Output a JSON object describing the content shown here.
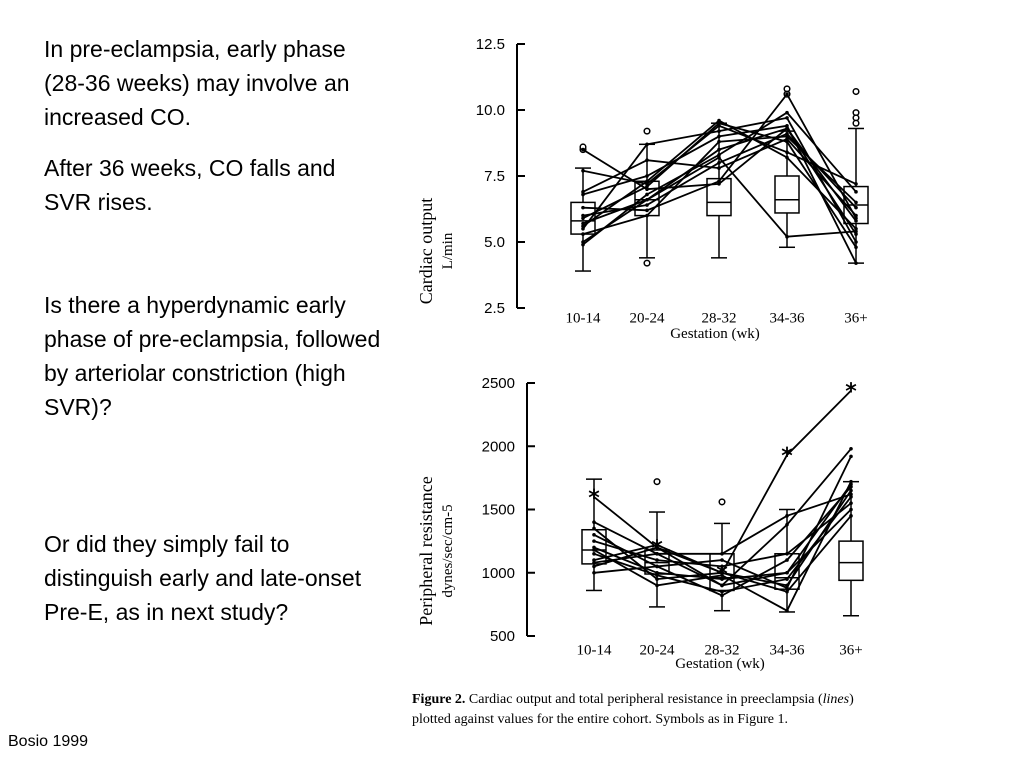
{
  "slide": {
    "paragraphs": [
      "In pre-eclampsia, early phase (28-36 weeks) may involve an increased CO.",
      "After 36 weeks, CO falls and SVR rises.",
      "Is there a hyperdynamic early phase of pre-eclampsia, followed by arteriolar constriction (high SVR)?",
      "Or did they simply fail to distinguish early and late-onset Pre-E, as in next study?"
    ],
    "citation": "Bosio 1999"
  },
  "figure_caption": {
    "label": "Figure 2.",
    "text_before": "Cardiac output and total peripheral resistance in preeclampsia (",
    "emph": "lines",
    "text_after": ") plotted against values for the entire cohort. Symbols as in Figure 1."
  },
  "chart_data": [
    {
      "type": "box",
      "ylabel": "Cardiac output",
      "ylabel_unit": "L/min",
      "xlabel": "Gestation (wk)",
      "categories": [
        "10-14",
        "20-24",
        "28-32",
        "34-36",
        "36+"
      ],
      "ylim": [
        2.5,
        12.5
      ],
      "yticks": [
        "12.5",
        "10.0",
        "7.5",
        "5.0",
        "2.5"
      ],
      "boxes": [
        {
          "min": 3.9,
          "q1": 5.3,
          "median": 5.8,
          "q3": 6.5,
          "max": 7.8,
          "outliers": [
            8.5,
            8.6
          ]
        },
        {
          "min": 4.4,
          "q1": 6.0,
          "median": 6.6,
          "q3": 7.3,
          "max": 8.7,
          "outliers": [
            9.2,
            4.2
          ]
        },
        {
          "min": 4.4,
          "q1": 6.0,
          "median": 6.5,
          "q3": 7.4,
          "max": 9.5,
          "outliers": []
        },
        {
          "min": 4.8,
          "q1": 6.1,
          "median": 6.6,
          "q3": 7.5,
          "max": 9.2,
          "outliers": [
            10.8,
            10.6
          ]
        },
        {
          "min": 4.2,
          "q1": 5.7,
          "median": 6.4,
          "q3": 7.1,
          "max": 9.3,
          "outliers": [
            10.7,
            9.9,
            9.7,
            9.5
          ]
        }
      ],
      "series": [
        {
          "values": [
            5.7,
            6.6,
            8.5,
            9.3,
            5.3
          ]
        },
        {
          "values": [
            5.9,
            7.1,
            9.5,
            8.8,
            4.8
          ]
        },
        {
          "values": [
            6.3,
            6.2,
            7.3,
            10.6,
            5.9
          ]
        },
        {
          "values": [
            4.9,
            6.8,
            8.3,
            9.9,
            6.9
          ]
        },
        {
          "values": [
            5.6,
            7.3,
            9.6,
            8.2,
            5.5
          ]
        },
        {
          "values": [
            6.0,
            6.4,
            8.0,
            9.1,
            6.3
          ]
        },
        {
          "values": [
            8.5,
            7.0,
            7.2,
            9.3,
            5.8
          ]
        },
        {
          "values": [
            5.3,
            6.0,
            8.8,
            9.0,
            6.5
          ]
        },
        {
          "values": [
            6.8,
            7.5,
            9.0,
            9.4,
            4.2
          ]
        },
        {
          "values": [
            5.5,
            8.7,
            9.2,
            9.7,
            5.0
          ]
        },
        {
          "values": [
            6.9,
            8.1,
            7.8,
            8.9,
            6.0
          ]
        },
        {
          "values": [
            7.7,
            7.2,
            9.4,
            8.4,
            7.2
          ]
        },
        {
          "values": [
            5.0,
            6.6,
            8.2,
            5.2,
            5.4
          ]
        }
      ]
    },
    {
      "type": "box",
      "ylabel": "Peripheral resistance",
      "ylabel_unit": "dynes/sec/cm-5",
      "xlabel": "Gestation (wk)",
      "categories": [
        "10-14",
        "20-24",
        "28-32",
        "34-36",
        "36+"
      ],
      "ylim": [
        500,
        2500
      ],
      "yticks": [
        "2500",
        "2000",
        "1500",
        "1000",
        "500"
      ],
      "boxes": [
        {
          "min": 860,
          "q1": 1070,
          "median": 1180,
          "q3": 1340,
          "max": 1740,
          "outliers": []
        },
        {
          "min": 730,
          "q1": 990,
          "median": 1080,
          "q3": 1180,
          "max": 1480,
          "outliers": [
            1720
          ]
        },
        {
          "min": 700,
          "q1": 860,
          "median": 960,
          "q3": 1150,
          "max": 1390,
          "outliers": [
            1560
          ]
        },
        {
          "min": 690,
          "q1": 870,
          "median": 960,
          "q3": 1150,
          "max": 1500,
          "outliers": []
        },
        {
          "min": 660,
          "q1": 940,
          "median": 1080,
          "q3": 1250,
          "max": 1720,
          "outliers": []
        }
      ],
      "series": [
        {
          "values": [
            1600,
            1200,
            1000,
            1930,
            2440
          ],
          "marker": "asterisk"
        },
        {
          "values": [
            1400,
            1150,
            900,
            1380,
            1980
          ]
        },
        {
          "values": [
            1300,
            1050,
            1100,
            880,
            1920
          ]
        },
        {
          "values": [
            1200,
            1000,
            950,
            1000,
            1700
          ]
        },
        {
          "values": [
            1100,
            1220,
            1000,
            900,
            1650
          ]
        },
        {
          "values": [
            1150,
            980,
            850,
            950,
            1600
          ]
        },
        {
          "values": [
            1250,
            1100,
            1050,
            1150,
            1550
          ]
        },
        {
          "values": [
            1050,
            1200,
            900,
            1000,
            1500
          ]
        },
        {
          "values": [
            1350,
            950,
            1000,
            850,
            1450
          ]
        },
        {
          "values": [
            1000,
            1050,
            820,
            1100,
            1680
          ]
        },
        {
          "values": [
            1180,
            900,
            980,
            700,
            1720
          ]
        },
        {
          "values": [
            1080,
            1150,
            1150,
            1450,
            1620
          ]
        }
      ]
    }
  ]
}
